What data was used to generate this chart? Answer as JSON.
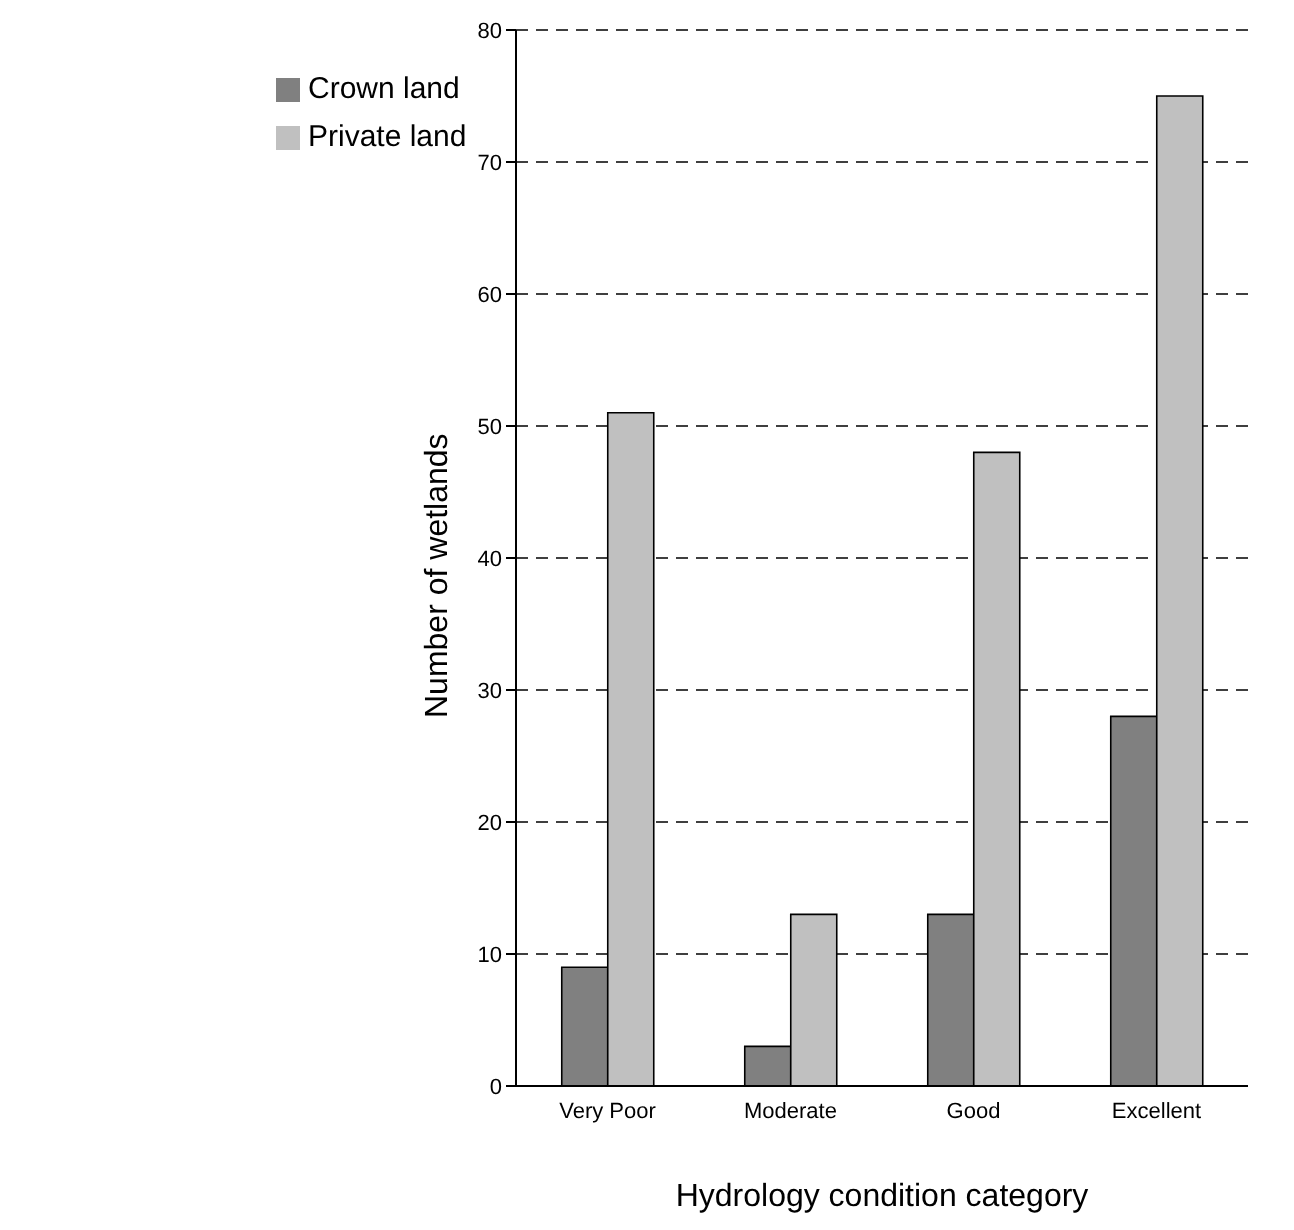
{
  "chart_data": {
    "type": "bar",
    "xlabel": "Hydrology condition category",
    "ylabel": "Number of wetlands",
    "categories": [
      "Very Poor",
      "Moderate",
      "Good",
      "Excellent"
    ],
    "series": [
      {
        "name": "Crown land",
        "color": "#808080",
        "values": [
          9,
          3,
          13,
          28
        ]
      },
      {
        "name": "Private land",
        "color": "#c0c0c0",
        "values": [
          51,
          13,
          48,
          75
        ]
      }
    ],
    "ylim": [
      0,
      80
    ],
    "yticks": [
      0,
      10,
      20,
      30,
      40,
      50,
      60,
      70,
      80
    ],
    "grid": "y",
    "legend": "top left"
  }
}
